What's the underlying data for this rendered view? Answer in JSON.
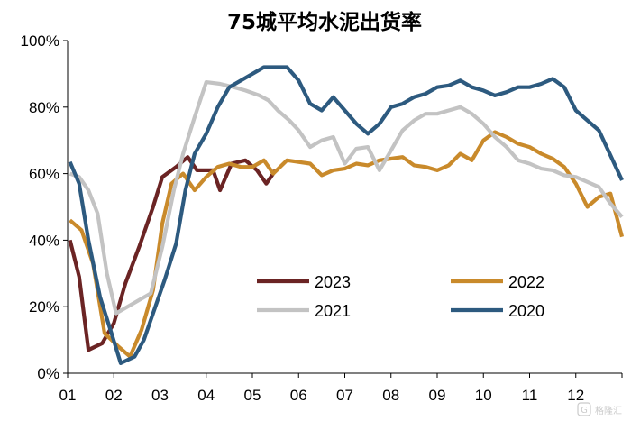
{
  "chart_data": {
    "type": "line",
    "title": "75城平均水泥出货率",
    "xlabel": "",
    "ylabel": "",
    "ylim": [
      0,
      100
    ],
    "xlim": [
      1,
      13
    ],
    "y_ticks": [
      "0%",
      "20%",
      "40%",
      "60%",
      "80%",
      "100%"
    ],
    "x_ticks": [
      "01",
      "02",
      "03",
      "04",
      "05",
      "06",
      "07",
      "08",
      "09",
      "10",
      "11",
      "12"
    ],
    "grid": false,
    "legend": "bottom-center",
    "series": [
      {
        "name": "2023",
        "color": "#6b2424",
        "points": [
          [
            1.05,
            40
          ],
          [
            1.25,
            29
          ],
          [
            1.45,
            7
          ],
          [
            1.75,
            9
          ],
          [
            2.0,
            15
          ],
          [
            2.25,
            27
          ],
          [
            2.55,
            38
          ],
          [
            2.85,
            50
          ],
          [
            3.05,
            59
          ],
          [
            3.35,
            62
          ],
          [
            3.6,
            65
          ],
          [
            3.8,
            61
          ],
          [
            4.15,
            61
          ],
          [
            4.3,
            55
          ],
          [
            4.55,
            63
          ],
          [
            4.85,
            64
          ],
          [
            5.1,
            61
          ],
          [
            5.3,
            57
          ],
          [
            5.5,
            61
          ]
        ]
      },
      {
        "name": "2022",
        "color": "#c98a2b",
        "points": [
          [
            1.05,
            46
          ],
          [
            1.3,
            43
          ],
          [
            1.55,
            33
          ],
          [
            1.8,
            12
          ],
          [
            2.1,
            8
          ],
          [
            2.35,
            5
          ],
          [
            2.6,
            13
          ],
          [
            2.85,
            25
          ],
          [
            3.05,
            45
          ],
          [
            3.25,
            57
          ],
          [
            3.5,
            60
          ],
          [
            3.75,
            55
          ],
          [
            4.0,
            59
          ],
          [
            4.25,
            62
          ],
          [
            4.5,
            63
          ],
          [
            4.75,
            62
          ],
          [
            5.0,
            62
          ],
          [
            5.25,
            64
          ],
          [
            5.45,
            60
          ],
          [
            5.75,
            64
          ],
          [
            6.0,
            63.5
          ],
          [
            6.25,
            63
          ],
          [
            6.5,
            59.5
          ],
          [
            6.75,
            61
          ],
          [
            7.0,
            61.5
          ],
          [
            7.25,
            63
          ],
          [
            7.5,
            62.5
          ],
          [
            7.75,
            64
          ],
          [
            8.0,
            64.5
          ],
          [
            8.25,
            65
          ],
          [
            8.5,
            62.5
          ],
          [
            8.75,
            62
          ],
          [
            9.0,
            61
          ],
          [
            9.25,
            62.5
          ],
          [
            9.5,
            66
          ],
          [
            9.75,
            64
          ],
          [
            10.0,
            70
          ],
          [
            10.25,
            72.5
          ],
          [
            10.5,
            71
          ],
          [
            10.75,
            69
          ],
          [
            11.0,
            68
          ],
          [
            11.25,
            66
          ],
          [
            11.5,
            64.5
          ],
          [
            11.75,
            62
          ],
          [
            12.0,
            57
          ],
          [
            12.25,
            50
          ],
          [
            12.5,
            53
          ],
          [
            12.75,
            54
          ],
          [
            13.0,
            41
          ]
        ]
      },
      {
        "name": "2021",
        "color": "#c3c3c3",
        "points": [
          [
            1.05,
            60
          ],
          [
            1.25,
            59
          ],
          [
            1.45,
            55
          ],
          [
            1.65,
            48
          ],
          [
            1.85,
            30
          ],
          [
            2.05,
            18
          ],
          [
            2.3,
            20
          ],
          [
            2.55,
            22
          ],
          [
            2.8,
            24
          ],
          [
            3.05,
            38
          ],
          [
            3.3,
            55
          ],
          [
            3.5,
            66
          ],
          [
            3.75,
            77
          ],
          [
            4.0,
            87.5
          ],
          [
            4.3,
            87
          ],
          [
            4.6,
            86
          ],
          [
            4.85,
            85
          ],
          [
            5.15,
            83.5
          ],
          [
            5.35,
            82
          ],
          [
            5.55,
            79
          ],
          [
            5.8,
            76
          ],
          [
            6.0,
            73
          ],
          [
            6.25,
            68
          ],
          [
            6.5,
            70
          ],
          [
            6.75,
            71
          ],
          [
            7.0,
            63
          ],
          [
            7.25,
            67.5
          ],
          [
            7.5,
            68
          ],
          [
            7.75,
            61
          ],
          [
            8.0,
            67
          ],
          [
            8.25,
            73
          ],
          [
            8.5,
            76
          ],
          [
            8.75,
            78
          ],
          [
            9.0,
            78
          ],
          [
            9.25,
            79
          ],
          [
            9.5,
            80
          ],
          [
            9.75,
            78
          ],
          [
            10.0,
            75
          ],
          [
            10.25,
            71
          ],
          [
            10.5,
            68
          ],
          [
            10.75,
            64
          ],
          [
            11.0,
            63
          ],
          [
            11.25,
            61.5
          ],
          [
            11.5,
            61
          ],
          [
            11.75,
            59.5
          ],
          [
            12.0,
            59
          ],
          [
            12.25,
            57.5
          ],
          [
            12.5,
            56
          ],
          [
            12.75,
            51
          ],
          [
            13.0,
            47
          ]
        ]
      },
      {
        "name": "2020",
        "color": "#2d5a7f",
        "points": [
          [
            1.05,
            63.5
          ],
          [
            1.25,
            57
          ],
          [
            1.45,
            40
          ],
          [
            1.7,
            23
          ],
          [
            1.95,
            12
          ],
          [
            2.15,
            3
          ],
          [
            2.45,
            5
          ],
          [
            2.65,
            10
          ],
          [
            2.85,
            18
          ],
          [
            3.1,
            28
          ],
          [
            3.35,
            39
          ],
          [
            3.55,
            55
          ],
          [
            3.75,
            66
          ],
          [
            4.0,
            72
          ],
          [
            4.25,
            80
          ],
          [
            4.5,
            86
          ],
          [
            4.75,
            88
          ],
          [
            5.0,
            90
          ],
          [
            5.25,
            92
          ],
          [
            5.5,
            92
          ],
          [
            5.75,
            92
          ],
          [
            6.0,
            88
          ],
          [
            6.25,
            81
          ],
          [
            6.5,
            79
          ],
          [
            6.75,
            83
          ],
          [
            7.0,
            79
          ],
          [
            7.25,
            75
          ],
          [
            7.5,
            72
          ],
          [
            7.75,
            75
          ],
          [
            8.0,
            80
          ],
          [
            8.25,
            81
          ],
          [
            8.5,
            83
          ],
          [
            8.75,
            84
          ],
          [
            9.0,
            86
          ],
          [
            9.25,
            86.5
          ],
          [
            9.5,
            88
          ],
          [
            9.75,
            86
          ],
          [
            10.0,
            85
          ],
          [
            10.25,
            83.5
          ],
          [
            10.5,
            84.5
          ],
          [
            10.75,
            86
          ],
          [
            11.0,
            86
          ],
          [
            11.25,
            87
          ],
          [
            11.5,
            88.5
          ],
          [
            11.75,
            86
          ],
          [
            12.0,
            79
          ],
          [
            12.25,
            76
          ],
          [
            12.5,
            73
          ],
          [
            12.75,
            65.5
          ],
          [
            13.0,
            58
          ]
        ]
      }
    ]
  },
  "watermark": {
    "text": "格隆汇",
    "icon": "logo-g-icon"
  }
}
